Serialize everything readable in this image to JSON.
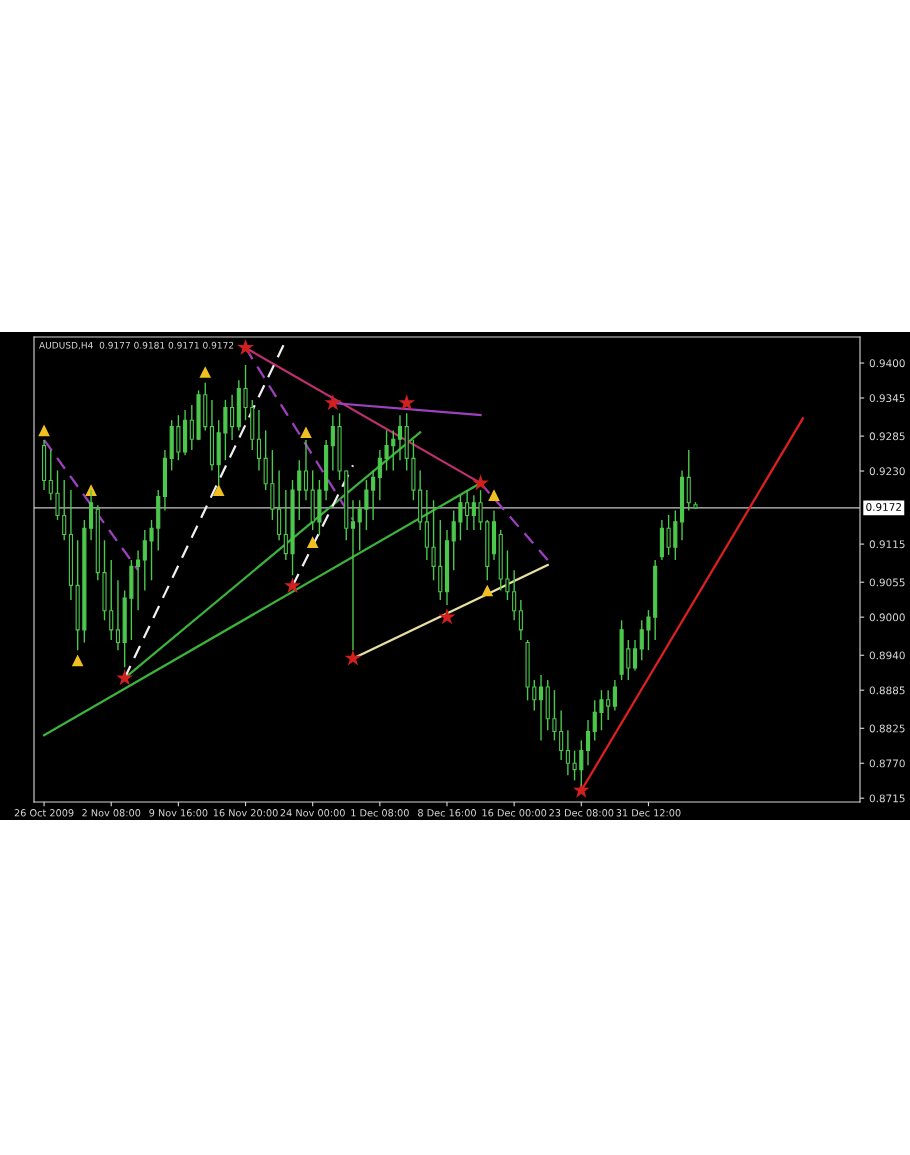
{
  "chart_data": {
    "type": "candlestick",
    "title": "AUDUSD,H4  0.9177 0.9181 0.9171 0.9172",
    "color": "#4cc84c",
    "categories": [
      "26 Oct 2009",
      null,
      null,
      null,
      null,
      null,
      null,
      null,
      null,
      null,
      "2 Nov 08:00",
      null,
      null,
      null,
      null,
      null,
      null,
      null,
      null,
      null,
      "9 Nov 16:00",
      null,
      null,
      null,
      null,
      null,
      null,
      null,
      null,
      null,
      "16 Nov 20:00",
      null,
      null,
      null,
      null,
      null,
      null,
      null,
      null,
      null,
      "24 Nov 00:00",
      null,
      null,
      null,
      null,
      null,
      null,
      null,
      null,
      null,
      "1 Dec 08:00",
      null,
      null,
      null,
      null,
      null,
      null,
      null,
      null,
      null,
      "8 Dec 16:00",
      null,
      null,
      null,
      null,
      null,
      null,
      null,
      null,
      null,
      "16 Dec 00:00",
      null,
      null,
      null,
      null,
      null,
      null,
      null,
      null,
      null,
      "23 Dec 08:00",
      null,
      null,
      null,
      null,
      null,
      null,
      null,
      null,
      null,
      "31 Dec 12:00",
      null,
      null,
      null,
      null,
      null,
      null,
      null,
      null,
      null,
      null,
      null,
      null,
      null,
      null,
      null,
      null,
      null,
      null,
      null,
      null,
      null,
      null,
      null,
      null,
      null,
      null,
      null,
      null,
      null,
      null,
      null
    ],
    "ohlc": [
      [
        0.927,
        0.9279,
        0.92,
        0.9215
      ],
      [
        0.9215,
        0.9263,
        0.9184,
        0.9195
      ],
      [
        0.9195,
        0.9231,
        0.9153,
        0.916
      ],
      [
        0.916,
        0.9216,
        0.9121,
        0.913
      ],
      [
        0.913,
        0.92,
        0.9027,
        0.905
      ],
      [
        0.905,
        0.9121,
        0.8948,
        0.898
      ],
      [
        0.898,
        0.9153,
        0.896,
        0.914
      ],
      [
        0.914,
        0.92,
        0.9121,
        0.918
      ],
      [
        0.917,
        0.9176,
        0.9058,
        0.907
      ],
      [
        0.907,
        0.9121,
        0.8995,
        0.901
      ],
      [
        0.901,
        0.909,
        0.8964,
        0.898
      ],
      [
        0.898,
        0.9058,
        0.8948,
        0.896
      ],
      [
        0.896,
        0.9042,
        0.8921,
        0.903
      ],
      [
        0.903,
        0.909,
        0.8964,
        0.908
      ],
      [
        0.908,
        0.9105,
        0.9011,
        0.909
      ],
      [
        0.909,
        0.9137,
        0.9042,
        0.912
      ],
      [
        0.912,
        0.9153,
        0.9058,
        0.914
      ],
      [
        0.914,
        0.92,
        0.9105,
        0.919
      ],
      [
        0.919,
        0.9263,
        0.9168,
        0.925
      ],
      [
        0.925,
        0.931,
        0.9231,
        0.93
      ],
      [
        0.93,
        0.9318,
        0.9247,
        0.926
      ],
      [
        0.926,
        0.9326,
        0.9255,
        0.931
      ],
      [
        0.931,
        0.9334,
        0.9263,
        0.928
      ],
      [
        0.928,
        0.9357,
        0.9279,
        0.935
      ],
      [
        0.935,
        0.9369,
        0.9294,
        0.93
      ],
      [
        0.93,
        0.9342,
        0.9231,
        0.924
      ],
      [
        0.924,
        0.931,
        0.9208,
        0.929
      ],
      [
        0.929,
        0.9342,
        0.9247,
        0.933
      ],
      [
        0.933,
        0.935,
        0.9279,
        0.93
      ],
      [
        0.93,
        0.9373,
        0.9294,
        0.936
      ],
      [
        0.936,
        0.9397,
        0.931,
        0.933
      ],
      [
        0.933,
        0.9342,
        0.9263,
        0.928
      ],
      [
        0.928,
        0.9326,
        0.9231,
        0.925
      ],
      [
        0.925,
        0.9294,
        0.92,
        0.921
      ],
      [
        0.921,
        0.9263,
        0.9153,
        0.917
      ],
      [
        0.917,
        0.9231,
        0.9121,
        0.913
      ],
      [
        0.913,
        0.92,
        0.909,
        0.91
      ],
      [
        0.91,
        0.9216,
        0.9066,
        0.92
      ],
      [
        0.92,
        0.9247,
        0.9153,
        0.923
      ],
      [
        0.923,
        0.9279,
        0.9184,
        0.92
      ],
      [
        0.92,
        0.9231,
        0.9137,
        0.915
      ],
      [
        0.915,
        0.9216,
        0.9129,
        0.92
      ],
      [
        0.92,
        0.9279,
        0.9184,
        0.927
      ],
      [
        0.927,
        0.9318,
        0.9231,
        0.93
      ],
      [
        0.93,
        0.9321,
        0.9216,
        0.923
      ],
      [
        0.923,
        0.9231,
        0.9121,
        0.914
      ],
      [
        0.914,
        0.9184,
        0.8948,
        0.915
      ],
      [
        0.915,
        0.9184,
        0.9105,
        0.917
      ],
      [
        0.917,
        0.9216,
        0.9137,
        0.92
      ],
      [
        0.92,
        0.9231,
        0.9153,
        0.922
      ],
      [
        0.922,
        0.9263,
        0.9184,
        0.925
      ],
      [
        0.925,
        0.9294,
        0.9231,
        0.927
      ],
      [
        0.927,
        0.9294,
        0.9231,
        0.928
      ],
      [
        0.928,
        0.9318,
        0.9247,
        0.93
      ],
      [
        0.93,
        0.9321,
        0.9231,
        0.925
      ],
      [
        0.925,
        0.9279,
        0.9184,
        0.92
      ],
      [
        0.92,
        0.9231,
        0.9137,
        0.915
      ],
      [
        0.915,
        0.92,
        0.909,
        0.911
      ],
      [
        0.911,
        0.9184,
        0.9058,
        0.908
      ],
      [
        0.908,
        0.9153,
        0.9027,
        0.904
      ],
      [
        0.904,
        0.9137,
        0.9019,
        0.912
      ],
      [
        0.912,
        0.9168,
        0.9074,
        0.915
      ],
      [
        0.915,
        0.9192,
        0.9121,
        0.918
      ],
      [
        0.918,
        0.92,
        0.9137,
        0.916
      ],
      [
        0.916,
        0.9192,
        0.9137,
        0.918
      ],
      [
        0.918,
        0.92,
        0.9137,
        0.915
      ],
      [
        0.915,
        0.9153,
        0.9058,
        0.908
      ],
      [
        0.91,
        0.9168,
        0.909,
        0.915
      ],
      [
        0.913,
        0.9137,
        0.9042,
        0.906
      ],
      [
        0.906,
        0.9105,
        0.9027,
        0.904
      ],
      [
        0.904,
        0.9074,
        0.8995,
        0.901
      ],
      [
        0.901,
        0.9027,
        0.8964,
        0.898
      ],
      [
        0.896,
        0.8964,
        0.8869,
        0.889
      ],
      [
        0.889,
        0.8901,
        0.8853,
        0.887
      ],
      [
        0.887,
        0.8909,
        0.8806,
        0.889
      ],
      [
        0.889,
        0.8901,
        0.8822,
        0.884
      ],
      [
        0.884,
        0.8885,
        0.8806,
        0.882
      ],
      [
        0.882,
        0.8853,
        0.8775,
        0.879
      ],
      [
        0.879,
        0.8822,
        0.8751,
        0.877
      ],
      [
        0.877,
        0.879,
        0.8743,
        0.876
      ],
      [
        0.876,
        0.8806,
        0.8735,
        0.879
      ],
      [
        0.879,
        0.8838,
        0.8767,
        0.882
      ],
      [
        0.882,
        0.8869,
        0.8806,
        0.885
      ],
      [
        0.885,
        0.8885,
        0.8822,
        0.887
      ],
      [
        0.887,
        0.8885,
        0.8838,
        0.886
      ],
      [
        0.886,
        0.8901,
        0.8853,
        0.889
      ],
      [
        0.891,
        0.8995,
        0.8901,
        0.898
      ],
      [
        0.895,
        0.8964,
        0.8901,
        0.892
      ],
      [
        0.892,
        0.8964,
        0.8916,
        0.895
      ],
      [
        0.895,
        0.8995,
        0.8932,
        0.898
      ],
      [
        0.898,
        0.9011,
        0.8948,
        0.9
      ],
      [
        0.9,
        0.909,
        0.8964,
        0.908
      ],
      [
        0.9095,
        0.9153,
        0.909,
        0.914
      ],
      [
        0.914,
        0.9161,
        0.9098,
        0.911
      ],
      [
        0.911,
        0.9168,
        0.909,
        0.915
      ],
      [
        0.915,
        0.9231,
        0.9121,
        0.922
      ],
      [
        0.922,
        0.9263,
        0.9168,
        0.918
      ],
      [
        0.9177,
        0.9181,
        0.9171,
        0.9172
      ],
      null,
      null,
      null,
      null,
      null,
      null,
      null,
      null,
      null,
      null,
      null,
      null,
      null,
      null,
      null,
      null,
      null,
      null,
      null,
      null,
      null,
      null,
      null,
      null
    ],
    "series": [
      {
        "type": "line",
        "color": "#e02020",
        "line_style": "solid",
        "values": [
          null,
          null,
          null,
          null,
          null,
          null,
          null,
          null,
          null,
          null,
          null,
          null,
          null,
          null,
          null,
          null,
          null,
          null,
          null,
          null,
          null,
          null,
          null,
          null,
          null,
          null,
          null,
          null,
          null,
          null,
          null,
          null,
          null,
          null,
          null,
          null,
          null,
          null,
          null,
          null,
          null,
          null,
          null,
          null,
          null,
          null,
          null,
          null,
          null,
          null,
          null,
          null,
          null,
          null,
          null,
          null,
          null,
          null,
          null,
          null,
          null,
          null,
          null,
          null,
          null,
          null,
          null,
          null,
          null,
          null,
          null,
          null,
          null,
          null,
          null,
          null,
          null,
          null,
          null,
          null,
          0.8727,
          null,
          null,
          null,
          null,
          null,
          null,
          null,
          null,
          null,
          null,
          null,
          null,
          null,
          null,
          null,
          null,
          null,
          null,
          null,
          null,
          null,
          null,
          null,
          null,
          null,
          null,
          null,
          null,
          null,
          null,
          null,
          null,
          0.9313,
          null,
          null,
          null,
          null,
          null,
          null,
          null,
          null
        ]
      },
      {
        "type": "line",
        "color": "#3cb43c",
        "line_style": "solid",
        "values": [
          0.8814,
          null,
          null,
          null,
          null,
          null,
          null,
          null,
          null,
          null,
          null,
          null,
          null,
          null,
          null,
          null,
          null,
          null,
          null,
          null,
          null,
          null,
          null,
          null,
          null,
          null,
          null,
          null,
          null,
          null,
          null,
          null,
          null,
          null,
          null,
          null,
          null,
          null,
          null,
          null,
          null,
          null,
          null,
          null,
          null,
          null,
          null,
          null,
          null,
          null,
          null,
          null,
          null,
          null,
          null,
          null,
          null,
          null,
          null,
          null,
          null,
          null,
          null,
          null,
          null,
          0.9211,
          null,
          null,
          null,
          null,
          null,
          null,
          null,
          null,
          null,
          null,
          null,
          null,
          null,
          null,
          null,
          null,
          null,
          null,
          null,
          null,
          null,
          null,
          null,
          null,
          null,
          null,
          null,
          null,
          null,
          null,
          null,
          null,
          null,
          null,
          null,
          null,
          null,
          null,
          null,
          null,
          null,
          null,
          null,
          null,
          null,
          null,
          null,
          null,
          null,
          null,
          null,
          null,
          null,
          null,
          null,
          null
        ]
      },
      {
        "type": "line",
        "color": "#3cb43c",
        "line_style": "solid",
        "values": [
          null,
          null,
          null,
          null,
          null,
          null,
          null,
          null,
          null,
          null,
          null,
          null,
          0.8904,
          null,
          null,
          null,
          null,
          null,
          null,
          null,
          null,
          null,
          null,
          null,
          null,
          null,
          null,
          null,
          null,
          null,
          null,
          null,
          null,
          null,
          null,
          null,
          null,
          null,
          null,
          null,
          null,
          null,
          null,
          null,
          null,
          null,
          null,
          null,
          null,
          null,
          null,
          null,
          null,
          null,
          null,
          null,
          0.9291,
          null,
          null,
          null,
          null,
          null,
          null,
          null,
          null,
          null,
          null,
          null,
          null,
          null,
          null,
          null,
          null,
          null,
          null,
          null,
          null,
          null,
          null,
          null,
          null,
          null,
          null,
          null,
          null,
          null,
          null,
          null,
          null,
          null,
          null,
          null,
          null,
          null,
          null,
          null,
          null,
          null,
          null,
          null,
          null,
          null,
          null,
          null,
          null,
          null,
          null,
          null,
          null,
          null,
          null,
          null,
          null,
          null,
          null,
          null,
          null,
          null,
          null,
          null,
          null,
          null
        ]
      },
      {
        "type": "line",
        "color": "#e8e0a0",
        "line_style": "solid",
        "values": [
          null,
          null,
          null,
          null,
          null,
          null,
          null,
          null,
          null,
          null,
          null,
          null,
          null,
          null,
          null,
          null,
          null,
          null,
          null,
          null,
          null,
          null,
          null,
          null,
          null,
          null,
          null,
          null,
          null,
          null,
          null,
          null,
          null,
          null,
          null,
          null,
          null,
          null,
          null,
          null,
          null,
          null,
          null,
          null,
          null,
          null,
          0.8935,
          null,
          null,
          null,
          null,
          null,
          null,
          null,
          null,
          null,
          null,
          null,
          null,
          null,
          null,
          null,
          null,
          null,
          null,
          null,
          null,
          null,
          null,
          null,
          null,
          null,
          null,
          null,
          null,
          0.9082,
          null,
          null,
          null,
          null,
          null,
          null,
          null,
          null,
          null,
          null,
          null,
          null,
          null,
          null,
          null,
          null,
          null,
          null,
          null,
          null,
          null,
          null,
          null,
          null,
          null,
          null,
          null,
          null,
          null,
          null,
          null,
          null,
          null,
          null,
          null,
          null,
          null,
          null,
          null,
          null,
          null,
          null,
          null,
          null,
          null,
          null
        ]
      },
      {
        "type": "line",
        "color": "#c03070",
        "line_style": "solid",
        "values": [
          null,
          null,
          null,
          null,
          null,
          null,
          null,
          null,
          null,
          null,
          null,
          null,
          null,
          null,
          null,
          null,
          null,
          null,
          null,
          null,
          null,
          null,
          null,
          null,
          null,
          null,
          null,
          null,
          null,
          null,
          0.9424,
          null,
          null,
          null,
          null,
          null,
          null,
          null,
          null,
          null,
          null,
          null,
          null,
          null,
          null,
          null,
          null,
          null,
          null,
          null,
          null,
          null,
          null,
          null,
          null,
          null,
          null,
          null,
          null,
          null,
          null,
          null,
          null,
          null,
          null,
          0.9211,
          null,
          null,
          null,
          null,
          null,
          null,
          null,
          null,
          null,
          null,
          null,
          null,
          null,
          null,
          null,
          null,
          null,
          null,
          null,
          null,
          null,
          null,
          null,
          null,
          null,
          null,
          null,
          null,
          null,
          null,
          null,
          null,
          null,
          null,
          null,
          null,
          null,
          null,
          null,
          null,
          null,
          null,
          null,
          null,
          null,
          null,
          null,
          null,
          null,
          null,
          null,
          null,
          null,
          null,
          null,
          null
        ]
      },
      {
        "type": "line",
        "color": "#a040c0",
        "line_style": "dashed",
        "values": [
          null,
          null,
          null,
          null,
          null,
          null,
          null,
          null,
          null,
          null,
          null,
          null,
          null,
          null,
          null,
          null,
          null,
          null,
          null,
          null,
          null,
          null,
          null,
          null,
          null,
          null,
          null,
          null,
          null,
          null,
          null,
          null,
          null,
          null,
          null,
          null,
          null,
          null,
          null,
          null,
          null,
          null,
          null,
          null,
          null,
          null,
          null,
          null,
          null,
          null,
          null,
          null,
          null,
          null,
          null,
          null,
          null,
          null,
          null,
          null,
          null,
          null,
          null,
          null,
          null,
          0.9211,
          null,
          null,
          null,
          null,
          null,
          null,
          null,
          null,
          null,
          0.909,
          null,
          null,
          null,
          null,
          null,
          null,
          null,
          null,
          null,
          null,
          null,
          null,
          null,
          null,
          null,
          null,
          null,
          null,
          null,
          null,
          null,
          null,
          null,
          null,
          null,
          null,
          null,
          null,
          null,
          null,
          null,
          null,
          null,
          null,
          null,
          null,
          null,
          null,
          null,
          null,
          null,
          null,
          null,
          null,
          null,
          null
        ]
      },
      {
        "type": "line",
        "color": "#a040c0",
        "line_style": "solid",
        "values": [
          null,
          null,
          null,
          null,
          null,
          null,
          null,
          null,
          null,
          null,
          null,
          null,
          null,
          null,
          null,
          null,
          null,
          null,
          null,
          null,
          null,
          null,
          null,
          null,
          null,
          null,
          null,
          null,
          null,
          null,
          null,
          null,
          null,
          null,
          null,
          null,
          null,
          null,
          null,
          null,
          null,
          null,
          null,
          0.9337,
          null,
          null,
          null,
          null,
          null,
          null,
          null,
          null,
          null,
          null,
          null,
          null,
          null,
          null,
          null,
          null,
          null,
          null,
          null,
          null,
          null,
          0.9318,
          null,
          null,
          null,
          null,
          null,
          null,
          null,
          null,
          null,
          null,
          null,
          null,
          null,
          null,
          null,
          null,
          null,
          null,
          null,
          null,
          null,
          null,
          null,
          null,
          null,
          null,
          null,
          null,
          null,
          null,
          null,
          null,
          null,
          null,
          null,
          null,
          null,
          null,
          null,
          null,
          null,
          null,
          null,
          null,
          null,
          null,
          null,
          null,
          null,
          null,
          null,
          null,
          null,
          null,
          null,
          null
        ]
      },
      {
        "type": "line",
        "color": "#a040c0",
        "line_style": "dashed",
        "values": [
          0.9279,
          null,
          null,
          null,
          null,
          null,
          null,
          null,
          null,
          null,
          null,
          null,
          null,
          null,
          0.9074,
          null,
          null,
          null,
          null,
          null,
          null,
          null,
          null,
          null,
          null,
          null,
          null,
          null,
          null,
          null,
          null,
          null,
          null,
          null,
          null,
          null,
          null,
          null,
          null,
          null,
          null,
          null,
          null,
          null,
          null,
          null,
          null,
          null,
          null,
          null,
          null,
          null,
          null,
          null,
          null,
          null,
          null,
          null,
          null,
          null,
          null,
          null,
          null,
          null,
          null,
          null,
          null,
          null,
          null,
          null,
          null,
          null,
          null,
          null,
          null,
          null,
          null,
          null,
          null,
          null,
          null,
          null,
          null,
          null,
          null,
          null,
          null,
          null,
          null,
          null,
          null,
          null,
          null,
          null,
          null,
          null,
          null,
          null,
          null,
          null,
          null,
          null,
          null,
          null,
          null,
          null,
          null,
          null,
          null,
          null,
          null,
          null,
          null,
          null,
          null,
          null,
          null,
          null,
          null,
          null,
          null,
          null
        ]
      },
      {
        "type": "line",
        "color": "#a040c0",
        "line_style": "dashed",
        "values": [
          null,
          null,
          null,
          null,
          null,
          null,
          null,
          null,
          null,
          null,
          null,
          null,
          null,
          null,
          null,
          null,
          null,
          null,
          null,
          null,
          null,
          null,
          null,
          null,
          null,
          null,
          null,
          null,
          null,
          null,
          0.9424,
          null,
          null,
          null,
          null,
          null,
          null,
          null,
          null,
          null,
          null,
          null,
          null,
          null,
          null,
          null,
          0.9153,
          null,
          null,
          null,
          null,
          null,
          null,
          null,
          null,
          null,
          null,
          null,
          null,
          null,
          null,
          null,
          null,
          null,
          null,
          null,
          null,
          null,
          null,
          null,
          null,
          null,
          null,
          null,
          null,
          null,
          null,
          null,
          null,
          null,
          null,
          null,
          null,
          null,
          null,
          null,
          null,
          null,
          null,
          null,
          null,
          null,
          null,
          null,
          null,
          null,
          null,
          null,
          null,
          null,
          null,
          null,
          null,
          null,
          null,
          null,
          null,
          null,
          null,
          null,
          null,
          null,
          null,
          null,
          null,
          null,
          null,
          null,
          null,
          null,
          null,
          null
        ]
      },
      {
        "type": "line",
        "color": "#f0f0f0",
        "line_style": "dashed",
        "values": [
          null,
          null,
          null,
          null,
          null,
          null,
          null,
          null,
          null,
          null,
          null,
          null,
          0.8904,
          null,
          null,
          null,
          null,
          null,
          null,
          null,
          null,
          null,
          null,
          null,
          null,
          null,
          null,
          null,
          null,
          null,
          null,
          null,
          null,
          null,
          null,
          null,
          0.9436,
          null,
          null,
          null,
          null,
          null,
          null,
          null,
          null,
          null,
          null,
          null,
          null,
          null,
          null,
          null,
          null,
          null,
          null,
          null,
          null,
          null,
          null,
          null,
          null,
          null,
          null,
          null,
          null,
          null,
          null,
          null,
          null,
          null,
          null,
          null,
          null,
          null,
          null,
          null,
          null,
          null,
          null,
          null,
          null,
          null,
          null,
          null,
          null,
          null,
          null,
          null,
          null,
          null,
          null,
          null,
          null,
          null,
          null,
          null,
          null,
          null,
          null,
          null,
          null,
          null,
          null,
          null,
          null,
          null,
          null,
          null,
          null,
          null,
          null,
          null,
          null,
          null,
          null,
          null,
          null,
          null,
          null,
          null,
          null,
          null
        ]
      },
      {
        "type": "line",
        "color": "#f0f0f0",
        "line_style": "dashed",
        "values": [
          null,
          null,
          null,
          null,
          null,
          null,
          null,
          null,
          null,
          null,
          null,
          null,
          null,
          null,
          null,
          null,
          null,
          null,
          null,
          null,
          null,
          null,
          null,
          null,
          null,
          null,
          null,
          null,
          null,
          null,
          null,
          null,
          null,
          null,
          null,
          null,
          null,
          0.9049,
          null,
          null,
          null,
          null,
          null,
          null,
          null,
          null,
          0.9239,
          null,
          null,
          null,
          null,
          null,
          null,
          null,
          null,
          null,
          null,
          null,
          null,
          null,
          null,
          null,
          null,
          null,
          null,
          null,
          null,
          null,
          null,
          null,
          null,
          null,
          null,
          null,
          null,
          null,
          null,
          null,
          null,
          null,
          null,
          null,
          null,
          null,
          null,
          null,
          null,
          null,
          null,
          null,
          null,
          null,
          null,
          null,
          null,
          null,
          null,
          null,
          null,
          null,
          null,
          null,
          null,
          null,
          null,
          null,
          null,
          null,
          null,
          null,
          null,
          null,
          null,
          null,
          null,
          null,
          null,
          null,
          null,
          null,
          null,
          null
        ]
      },
      {
        "type": "scatter",
        "color": "#d02020",
        "marker": "star",
        "values": [
          null,
          null,
          null,
          null,
          null,
          null,
          null,
          null,
          null,
          null,
          null,
          null,
          0.8904,
          null,
          null,
          null,
          null,
          null,
          null,
          null,
          null,
          null,
          null,
          null,
          null,
          null,
          null,
          null,
          null,
          null,
          0.9424,
          null,
          null,
          null,
          null,
          null,
          null,
          0.9049,
          null,
          null,
          null,
          null,
          null,
          0.9337,
          null,
          null,
          0.8935,
          null,
          null,
          null,
          null,
          null,
          null,
          null,
          0.9337,
          null,
          null,
          null,
          null,
          null,
          0.9,
          null,
          null,
          null,
          null,
          0.9211,
          null,
          null,
          null,
          null,
          null,
          null,
          null,
          null,
          null,
          null,
          null,
          null,
          null,
          null,
          0.8727,
          null,
          null,
          null,
          null,
          null,
          null,
          null,
          null,
          null,
          null,
          null,
          null,
          null,
          null,
          null,
          null,
          null,
          null,
          null,
          null,
          null,
          null,
          null,
          null,
          null,
          null,
          null,
          null,
          null,
          null,
          null,
          null,
          null,
          null,
          null,
          null,
          null,
          null,
          null,
          null,
          null
        ]
      },
      {
        "type": "scatter",
        "color": "#f0c020",
        "marker": "triangle",
        "values": [
          0.9294,
          null,
          null,
          null,
          null,
          0.8932,
          null,
          0.92,
          null,
          null,
          null,
          null,
          null,
          null,
          null,
          null,
          null,
          null,
          null,
          null,
          null,
          null,
          null,
          null,
          0.9386,
          null,
          0.92,
          null,
          null,
          null,
          null,
          null,
          null,
          null,
          null,
          null,
          null,
          null,
          null,
          0.9291,
          0.9118,
          null,
          null,
          null,
          null,
          null,
          null,
          null,
          null,
          null,
          null,
          null,
          null,
          null,
          null,
          null,
          null,
          null,
          null,
          null,
          null,
          null,
          null,
          null,
          null,
          null,
          0.9042,
          0.9192,
          null,
          null,
          null,
          null,
          null,
          null,
          null,
          null,
          null,
          null,
          null,
          null,
          null,
          null,
          null,
          null,
          null,
          null,
          null,
          null,
          null,
          null,
          null,
          null,
          null,
          null,
          null,
          null,
          null,
          null,
          null,
          null,
          null,
          null,
          null,
          null,
          null,
          null,
          null,
          null,
          null,
          null,
          null,
          null,
          null,
          null,
          null,
          null,
          null,
          null,
          null,
          null,
          null,
          null
        ]
      }
    ],
    "ylim": [
      0.8709,
      0.9441
    ],
    "yticks": [
      {
        "value": 0.94,
        "label": "0.9400"
      },
      {
        "value": 0.9345,
        "label": "0.9345"
      },
      {
        "value": 0.9285,
        "label": "0.9285"
      },
      {
        "value": 0.923,
        "label": "0.9230"
      },
      {
        "value": 0.9115,
        "label": "0.9115"
      },
      {
        "value": 0.9055,
        "label": "0.9055"
      },
      {
        "value": 0.9,
        "label": "0.9000"
      },
      {
        "value": 0.894,
        "label": "0.8940"
      },
      {
        "value": 0.8885,
        "label": "0.8885"
      },
      {
        "value": 0.8825,
        "label": "0.8825"
      },
      {
        "value": 0.877,
        "label": "0.8770"
      },
      {
        "value": 0.8715,
        "label": "0.8715"
      }
    ],
    "ref_lines": [
      {
        "axis": "y",
        "value": 0.9172,
        "label": "0.9172",
        "color": "#c8c8c8",
        "line_style": "solid"
      }
    ]
  }
}
